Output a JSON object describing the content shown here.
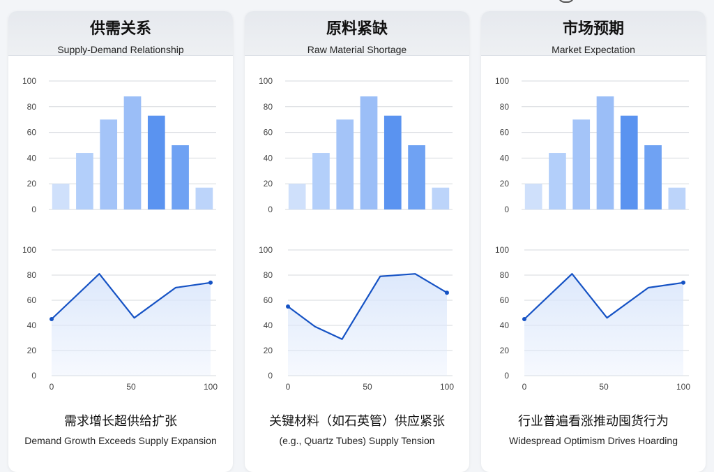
{
  "colors": {
    "bar_palette": [
      "#cfe0fb",
      "#b3cffa",
      "#a4c4f8",
      "#9bbef7",
      "#5a93f0",
      "#6fa2f3",
      "#bcd4fa"
    ],
    "line": "#1552c4",
    "area_top": "#dbe7fb",
    "grid": "#d6d9de"
  },
  "panels": [
    {
      "title_cn": "供需关系",
      "title_en": "Supply-Demand Relationship",
      "caption_cn": "需求增长超供给扩张",
      "caption_en": "Demand Growth Exceeds Supply Expansion"
    },
    {
      "title_cn": "原料紧缺",
      "title_en": "Raw Material Shortage",
      "caption_cn": "关键材料（如石英管）供应紧张",
      "caption_en": "(e.g., Quartz Tubes) Supply Tension"
    },
    {
      "title_cn": "市场预期",
      "title_en": "Market Expectation",
      "caption_cn": "行业普遍看涨推动囤货行为",
      "caption_en": "Widespread Optimism Drives Hoarding"
    }
  ],
  "chart_data": [
    {
      "type": "bar",
      "title": "供需关系",
      "categories": [
        "",
        "",
        "",
        "",
        "",
        "",
        ""
      ],
      "values": [
        20,
        44,
        70,
        88,
        73,
        50,
        17
      ],
      "ylim": [
        0,
        100
      ],
      "yticks": [
        0,
        20,
        40,
        60,
        80,
        100
      ],
      "grid": true
    },
    {
      "type": "area",
      "title": "供需关系",
      "x": [
        0,
        30,
        52,
        78,
        100
      ],
      "y": [
        45,
        81,
        46,
        70,
        74
      ],
      "xlim": [
        0,
        100
      ],
      "ylim": [
        0,
        100
      ],
      "xticks": [
        0,
        50,
        100
      ],
      "yticks": [
        0,
        20,
        40,
        60,
        80,
        100
      ],
      "grid": true
    },
    {
      "type": "bar",
      "title": "原料紧缺",
      "categories": [
        "",
        "",
        "",
        "",
        "",
        "",
        ""
      ],
      "values": [
        20,
        44,
        70,
        88,
        73,
        50,
        17
      ],
      "ylim": [
        0,
        100
      ],
      "yticks": [
        0,
        20,
        40,
        60,
        80,
        100
      ],
      "grid": true
    },
    {
      "type": "area",
      "title": "原料紧缺",
      "x": [
        0,
        17,
        34,
        58,
        80,
        100
      ],
      "y": [
        55,
        39,
        29,
        79,
        81,
        66
      ],
      "xlim": [
        0,
        100
      ],
      "ylim": [
        0,
        100
      ],
      "xticks": [
        0,
        50,
        100
      ],
      "yticks": [
        0,
        20,
        40,
        60,
        80,
        100
      ],
      "grid": true
    },
    {
      "type": "bar",
      "title": "市场预期",
      "categories": [
        "",
        "",
        "",
        "",
        "",
        "",
        ""
      ],
      "values": [
        20,
        44,
        70,
        88,
        73,
        50,
        17
      ],
      "ylim": [
        0,
        100
      ],
      "yticks": [
        0,
        20,
        40,
        60,
        80,
        100
      ],
      "grid": true
    },
    {
      "type": "area",
      "title": "市场预期",
      "x": [
        0,
        30,
        52,
        78,
        100
      ],
      "y": [
        45,
        81,
        46,
        70,
        74
      ],
      "xlim": [
        0,
        100
      ],
      "ylim": [
        0,
        100
      ],
      "xticks": [
        0,
        50,
        100
      ],
      "yticks": [
        0,
        20,
        40,
        60,
        80,
        100
      ],
      "grid": true
    }
  ]
}
